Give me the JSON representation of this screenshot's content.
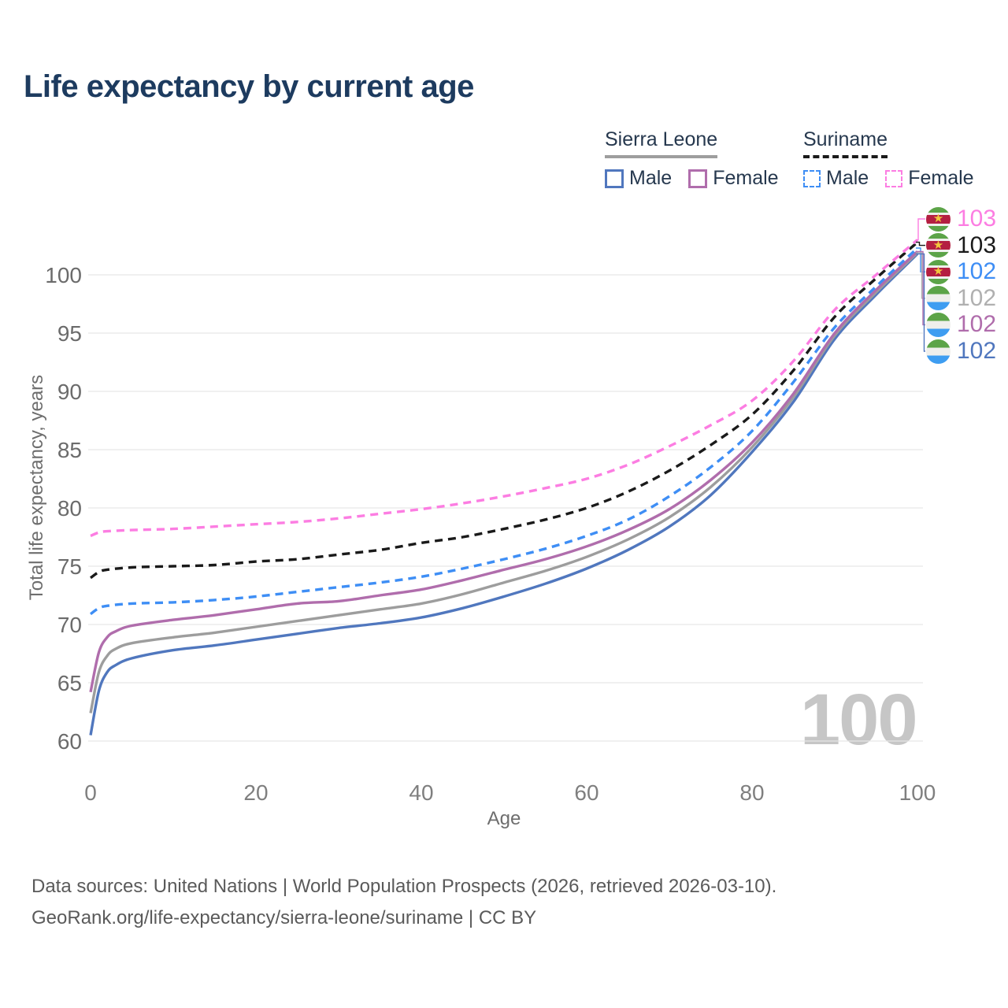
{
  "title": "Life expectancy by current age",
  "watermark": "100",
  "icons": {
    "star": "★"
  },
  "legend": {
    "groups": [
      {
        "country": "Sierra Leone",
        "line_style": "solid",
        "underline_color": "#9e9e9e",
        "items": [
          {
            "label": "Male",
            "color": "#5077be",
            "dashed": false
          },
          {
            "label": "Female",
            "color": "#b06dac",
            "dashed": false
          }
        ]
      },
      {
        "country": "Suriname",
        "line_style": "dashed",
        "underline_color": "#1a1a1a",
        "items": [
          {
            "label": "Male",
            "color": "#3e8ef5",
            "dashed": true
          },
          {
            "label": "Female",
            "color": "#fc7de2",
            "dashed": true
          }
        ]
      }
    ]
  },
  "footer": {
    "line1": "Data sources: United Nations | World Population Prospects (2026, retrieved 2026-03-10).",
    "line2": "GeoRank.org/life-expectancy/sierra-leone/suriname | CC BY"
  },
  "chart_data": {
    "type": "line",
    "title": "Life expectancy by current age",
    "xlabel": "Age",
    "ylabel": "Total life expectancy, years",
    "xlim": [
      0,
      100
    ],
    "ylim": [
      60,
      103
    ],
    "xticks": [
      0,
      20,
      40,
      60,
      80,
      100
    ],
    "yticks": [
      60,
      65,
      70,
      75,
      80,
      85,
      90,
      95,
      100
    ],
    "grid": "horizontal",
    "legend_position": "top-right",
    "age_indicator": "100",
    "series": [
      {
        "id": "sierra_leone_male",
        "name": "Sierra Leone Male",
        "country": "Sierra Leone",
        "flag": "sierra_leone",
        "color": "#5077be",
        "dashed": false,
        "points": [
          [
            0,
            60.5
          ],
          [
            1,
            64.3
          ],
          [
            2,
            65.9
          ],
          [
            3,
            66.5
          ],
          [
            5,
            67.1
          ],
          [
            10,
            67.8
          ],
          [
            15,
            68.2
          ],
          [
            20,
            68.7
          ],
          [
            25,
            69.2
          ],
          [
            30,
            69.7
          ],
          [
            35,
            70.1
          ],
          [
            40,
            70.6
          ],
          [
            45,
            71.4
          ],
          [
            50,
            72.4
          ],
          [
            55,
            73.5
          ],
          [
            60,
            74.8
          ],
          [
            65,
            76.4
          ],
          [
            70,
            78.4
          ],
          [
            75,
            81.1
          ],
          [
            80,
            84.8
          ],
          [
            85,
            89.1
          ],
          [
            90,
            94.5
          ],
          [
            95,
            98.3
          ],
          [
            100,
            101.8
          ]
        ]
      },
      {
        "id": "sierra_leone_total",
        "name": "Sierra Leone Total",
        "country": "Sierra Leone",
        "flag": "sierra_leone",
        "color": "#9d9d9d",
        "dashed": false,
        "points": [
          [
            0,
            62.4
          ],
          [
            1,
            65.9
          ],
          [
            2,
            67.3
          ],
          [
            3,
            67.9
          ],
          [
            5,
            68.4
          ],
          [
            10,
            68.9
          ],
          [
            15,
            69.3
          ],
          [
            20,
            69.8
          ],
          [
            25,
            70.3
          ],
          [
            30,
            70.8
          ],
          [
            35,
            71.3
          ],
          [
            40,
            71.8
          ],
          [
            45,
            72.6
          ],
          [
            50,
            73.6
          ],
          [
            55,
            74.6
          ],
          [
            60,
            75.8
          ],
          [
            65,
            77.3
          ],
          [
            70,
            79.2
          ],
          [
            75,
            81.8
          ],
          [
            80,
            85.2
          ],
          [
            85,
            89.5
          ],
          [
            90,
            94.8
          ],
          [
            95,
            98.5
          ],
          [
            100,
            101.9
          ]
        ]
      },
      {
        "id": "sierra_leone_female",
        "name": "Sierra Leone Female",
        "country": "Sierra Leone",
        "flag": "sierra_leone",
        "color": "#b06dac",
        "dashed": false,
        "points": [
          [
            0,
            64.2
          ],
          [
            1,
            67.6
          ],
          [
            2,
            68.9
          ],
          [
            3,
            69.4
          ],
          [
            5,
            69.9
          ],
          [
            10,
            70.4
          ],
          [
            15,
            70.8
          ],
          [
            20,
            71.3
          ],
          [
            25,
            71.8
          ],
          [
            30,
            72.0
          ],
          [
            35,
            72.5
          ],
          [
            40,
            73.0
          ],
          [
            45,
            73.8
          ],
          [
            50,
            74.7
          ],
          [
            55,
            75.6
          ],
          [
            60,
            76.7
          ],
          [
            65,
            78.1
          ],
          [
            70,
            79.9
          ],
          [
            75,
            82.4
          ],
          [
            80,
            85.6
          ],
          [
            85,
            89.8
          ],
          [
            90,
            95.0
          ],
          [
            95,
            98.7
          ],
          [
            100,
            102.0
          ]
        ]
      },
      {
        "id": "suriname_male",
        "name": "Suriname Male",
        "country": "Suriname",
        "flag": "suriname",
        "color": "#3e8ef5",
        "dashed": true,
        "points": [
          [
            0,
            70.9
          ],
          [
            1,
            71.4
          ],
          [
            2,
            71.6
          ],
          [
            5,
            71.8
          ],
          [
            10,
            71.9
          ],
          [
            15,
            72.1
          ],
          [
            20,
            72.4
          ],
          [
            25,
            72.8
          ],
          [
            30,
            73.2
          ],
          [
            35,
            73.6
          ],
          [
            40,
            74.1
          ],
          [
            45,
            74.8
          ],
          [
            50,
            75.6
          ],
          [
            55,
            76.5
          ],
          [
            60,
            77.6
          ],
          [
            65,
            79.0
          ],
          [
            70,
            81.0
          ],
          [
            75,
            83.5
          ],
          [
            80,
            86.6
          ],
          [
            85,
            90.8
          ],
          [
            90,
            95.5
          ],
          [
            95,
            99.0
          ],
          [
            100,
            102.3
          ]
        ]
      },
      {
        "id": "suriname_total",
        "name": "Suriname Total",
        "country": "Suriname",
        "flag": "suriname",
        "color": "#1a1a1a",
        "dashed": true,
        "points": [
          [
            0,
            74.0
          ],
          [
            1,
            74.5
          ],
          [
            2,
            74.7
          ],
          [
            5,
            74.9
          ],
          [
            10,
            75.0
          ],
          [
            15,
            75.1
          ],
          [
            20,
            75.4
          ],
          [
            25,
            75.6
          ],
          [
            30,
            76.0
          ],
          [
            35,
            76.4
          ],
          [
            40,
            77.0
          ],
          [
            45,
            77.5
          ],
          [
            50,
            78.2
          ],
          [
            55,
            79.0
          ],
          [
            60,
            80.0
          ],
          [
            65,
            81.4
          ],
          [
            70,
            83.2
          ],
          [
            75,
            85.4
          ],
          [
            80,
            88.0
          ],
          [
            85,
            91.8
          ],
          [
            90,
            96.4
          ],
          [
            95,
            99.7
          ],
          [
            100,
            102.8
          ]
        ]
      },
      {
        "id": "suriname_female",
        "name": "Suriname Female",
        "country": "Suriname",
        "flag": "suriname",
        "color": "#fc7de2",
        "dashed": true,
        "points": [
          [
            0,
            77.6
          ],
          [
            1,
            77.9
          ],
          [
            2,
            78.0
          ],
          [
            5,
            78.1
          ],
          [
            10,
            78.2
          ],
          [
            15,
            78.4
          ],
          [
            20,
            78.6
          ],
          [
            25,
            78.8
          ],
          [
            30,
            79.1
          ],
          [
            35,
            79.5
          ],
          [
            40,
            79.9
          ],
          [
            45,
            80.4
          ],
          [
            50,
            81.0
          ],
          [
            55,
            81.7
          ],
          [
            60,
            82.5
          ],
          [
            65,
            83.7
          ],
          [
            70,
            85.3
          ],
          [
            75,
            87.1
          ],
          [
            80,
            89.2
          ],
          [
            85,
            92.6
          ],
          [
            90,
            97.0
          ],
          [
            95,
            100.0
          ],
          [
            100,
            103.0
          ]
        ]
      }
    ],
    "right_labels": [
      {
        "series": "suriname_female",
        "flag": "suriname",
        "value": "103",
        "color": "#fc7de2"
      },
      {
        "series": "suriname_total",
        "flag": "suriname",
        "value": "103",
        "color": "#1a1a1a"
      },
      {
        "series": "suriname_male",
        "flag": "suriname",
        "value": "102",
        "color": "#3e8ef5"
      },
      {
        "series": "sierra_leone_total",
        "flag": "sierra_leone",
        "value": "102",
        "color": "#b0b0b0"
      },
      {
        "series": "sierra_leone_female",
        "flag": "sierra_leone",
        "value": "102",
        "color": "#b06dac"
      },
      {
        "series": "sierra_leone_male",
        "flag": "sierra_leone",
        "value": "102",
        "color": "#5077be"
      }
    ]
  }
}
